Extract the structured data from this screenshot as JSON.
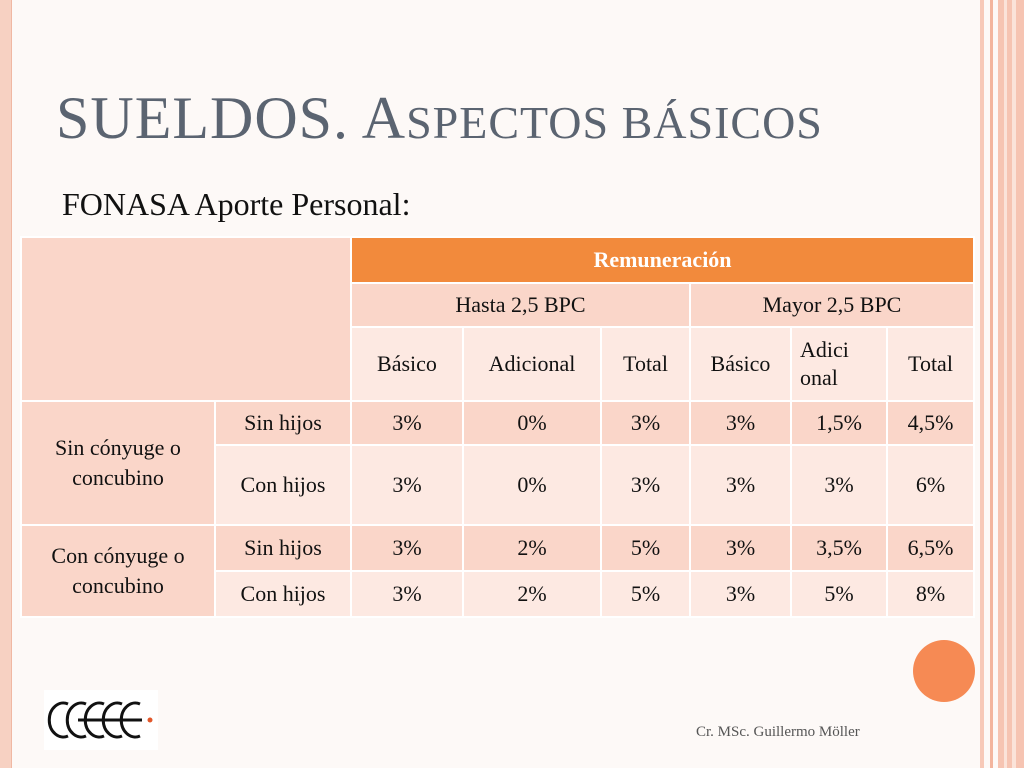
{
  "title_main": "SUELDOS. A",
  "title_rest": "SPECTOS BÁSICOS",
  "subtitle": "FONASA Aporte Personal:",
  "table": {
    "header_top": "Remuneración",
    "group_headers": [
      "Hasta 2,5 BPC",
      "Mayor 2,5 BPC"
    ],
    "col_headers": [
      "Básico",
      "Adicional",
      "Total",
      "Básico",
      "Adici onal",
      "Total"
    ],
    "groups": [
      {
        "label": "Sin cónyuge o concubino",
        "rows": [
          {
            "label": "Sin hijos",
            "values": [
              "3%",
              "0%",
              "3%",
              "3%",
              "1,5%",
              "4,5%"
            ]
          },
          {
            "label": "Con hijos",
            "values": [
              "3%",
              "0%",
              "3%",
              "3%",
              "3%",
              "6%"
            ]
          }
        ]
      },
      {
        "label": "Con cónyuge o concubino",
        "rows": [
          {
            "label": "Sin hijos",
            "values": [
              "3%",
              "2%",
              "5%",
              "3%",
              "3,5%",
              "6,5%"
            ]
          },
          {
            "label": "Con hijos",
            "values": [
              "3%",
              "2%",
              "5%",
              "3%",
              "5%",
              "8%"
            ]
          }
        ]
      }
    ]
  },
  "footer_text": "Cr. MSc. Guillermo Möller",
  "logo_text": "CCEEE",
  "colors": {
    "accent": "#f28a3c",
    "title": "#5b6471",
    "cell_mid": "#fad6c9",
    "cell_light": "#fde9e2"
  }
}
